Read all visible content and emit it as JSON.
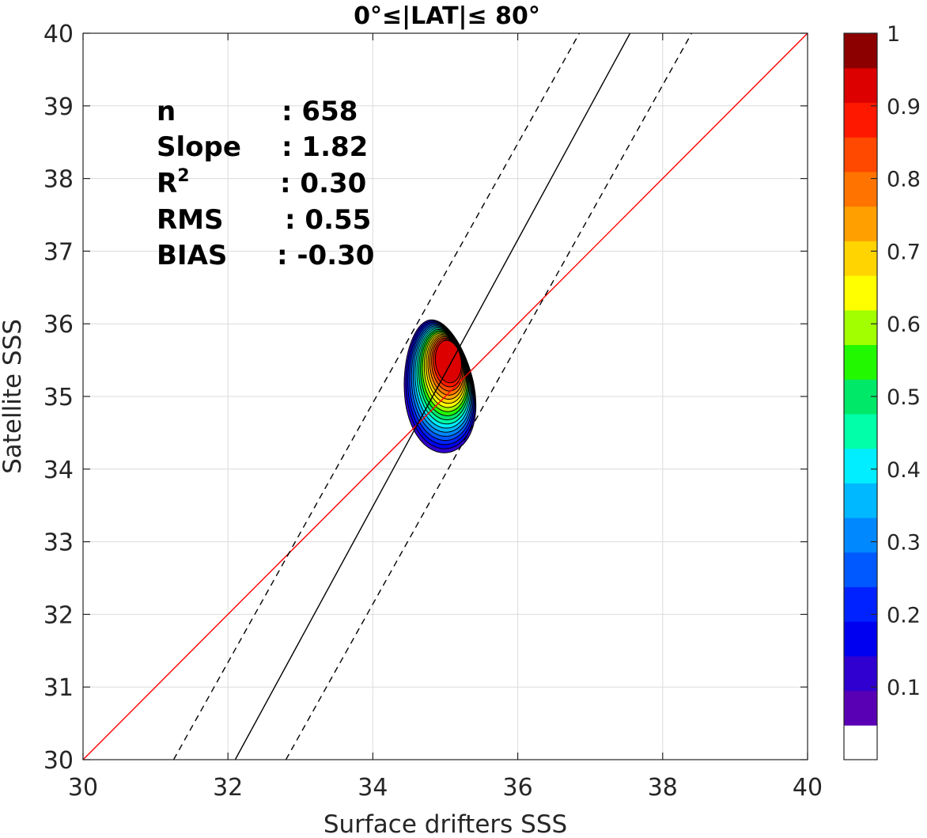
{
  "chart_data": {
    "type": "contour",
    "title": "0°≤|LAT|≤ 80°",
    "xlabel": "Surface drifters SSS",
    "ylabel": "Satellite SSS",
    "xlim": [
      30,
      40
    ],
    "ylim": [
      30,
      40
    ],
    "x_ticks": [
      "30",
      "32",
      "34",
      "36",
      "38",
      "40"
    ],
    "y_ticks": [
      "30",
      "31",
      "32",
      "33",
      "34",
      "35",
      "36",
      "37",
      "38",
      "39",
      "40"
    ],
    "grid": true,
    "lines": [
      {
        "name": "1:1 line",
        "color": "#ff0000",
        "style": "solid",
        "points": [
          [
            30,
            30
          ],
          [
            40,
            40
          ]
        ]
      },
      {
        "name": "regression fit",
        "color": "#000000",
        "style": "solid",
        "points": [
          [
            32.1,
            30
          ],
          [
            37.55,
            40
          ]
        ]
      },
      {
        "name": "upper bound",
        "color": "#000000",
        "style": "dashed",
        "points": [
          [
            31.25,
            30
          ],
          [
            36.85,
            40
          ]
        ]
      },
      {
        "name": "lower bound",
        "color": "#000000",
        "style": "dashed",
        "points": [
          [
            32.8,
            30
          ],
          [
            38.4,
            40
          ]
        ]
      }
    ],
    "density": {
      "peak": [
        35.05,
        35.5
      ],
      "levels": [
        0.05,
        0.1,
        0.15,
        0.2,
        0.25,
        0.3,
        0.35,
        0.4,
        0.45,
        0.5,
        0.55,
        0.6,
        0.65,
        0.7,
        0.75,
        0.8,
        0.85,
        0.9
      ]
    },
    "colorbar": {
      "min": 0,
      "max": 1,
      "tick_values": [
        0.1,
        0.2,
        0.3,
        0.4,
        0.5,
        0.6,
        0.7,
        0.8,
        0.9,
        1
      ],
      "tick_labels": [
        "0.1",
        "0.2",
        "0.3",
        "0.4",
        "0.5",
        "0.6",
        "0.7",
        "0.8",
        "0.9",
        "1"
      ],
      "colors": [
        "#ffffff",
        "#5a00b4",
        "#2f00d0",
        "#0000f0",
        "#0022ff",
        "#0058ff",
        "#0088ff",
        "#00b8ff",
        "#00eeff",
        "#00ffa8",
        "#00e868",
        "#22f800",
        "#a2ff00",
        "#ffff00",
        "#ffd400",
        "#ffa000",
        "#ff7400",
        "#ff4800",
        "#ff1800",
        "#dc0000",
        "#8c0000"
      ]
    },
    "stats": {
      "labels": [
        "n",
        "Slope",
        "R²",
        "RMS",
        "BIAS"
      ],
      "values": [
        ": 658",
        ": 1.82",
        ": 0.30",
        ": 0.55",
        ": -0.30"
      ]
    }
  }
}
